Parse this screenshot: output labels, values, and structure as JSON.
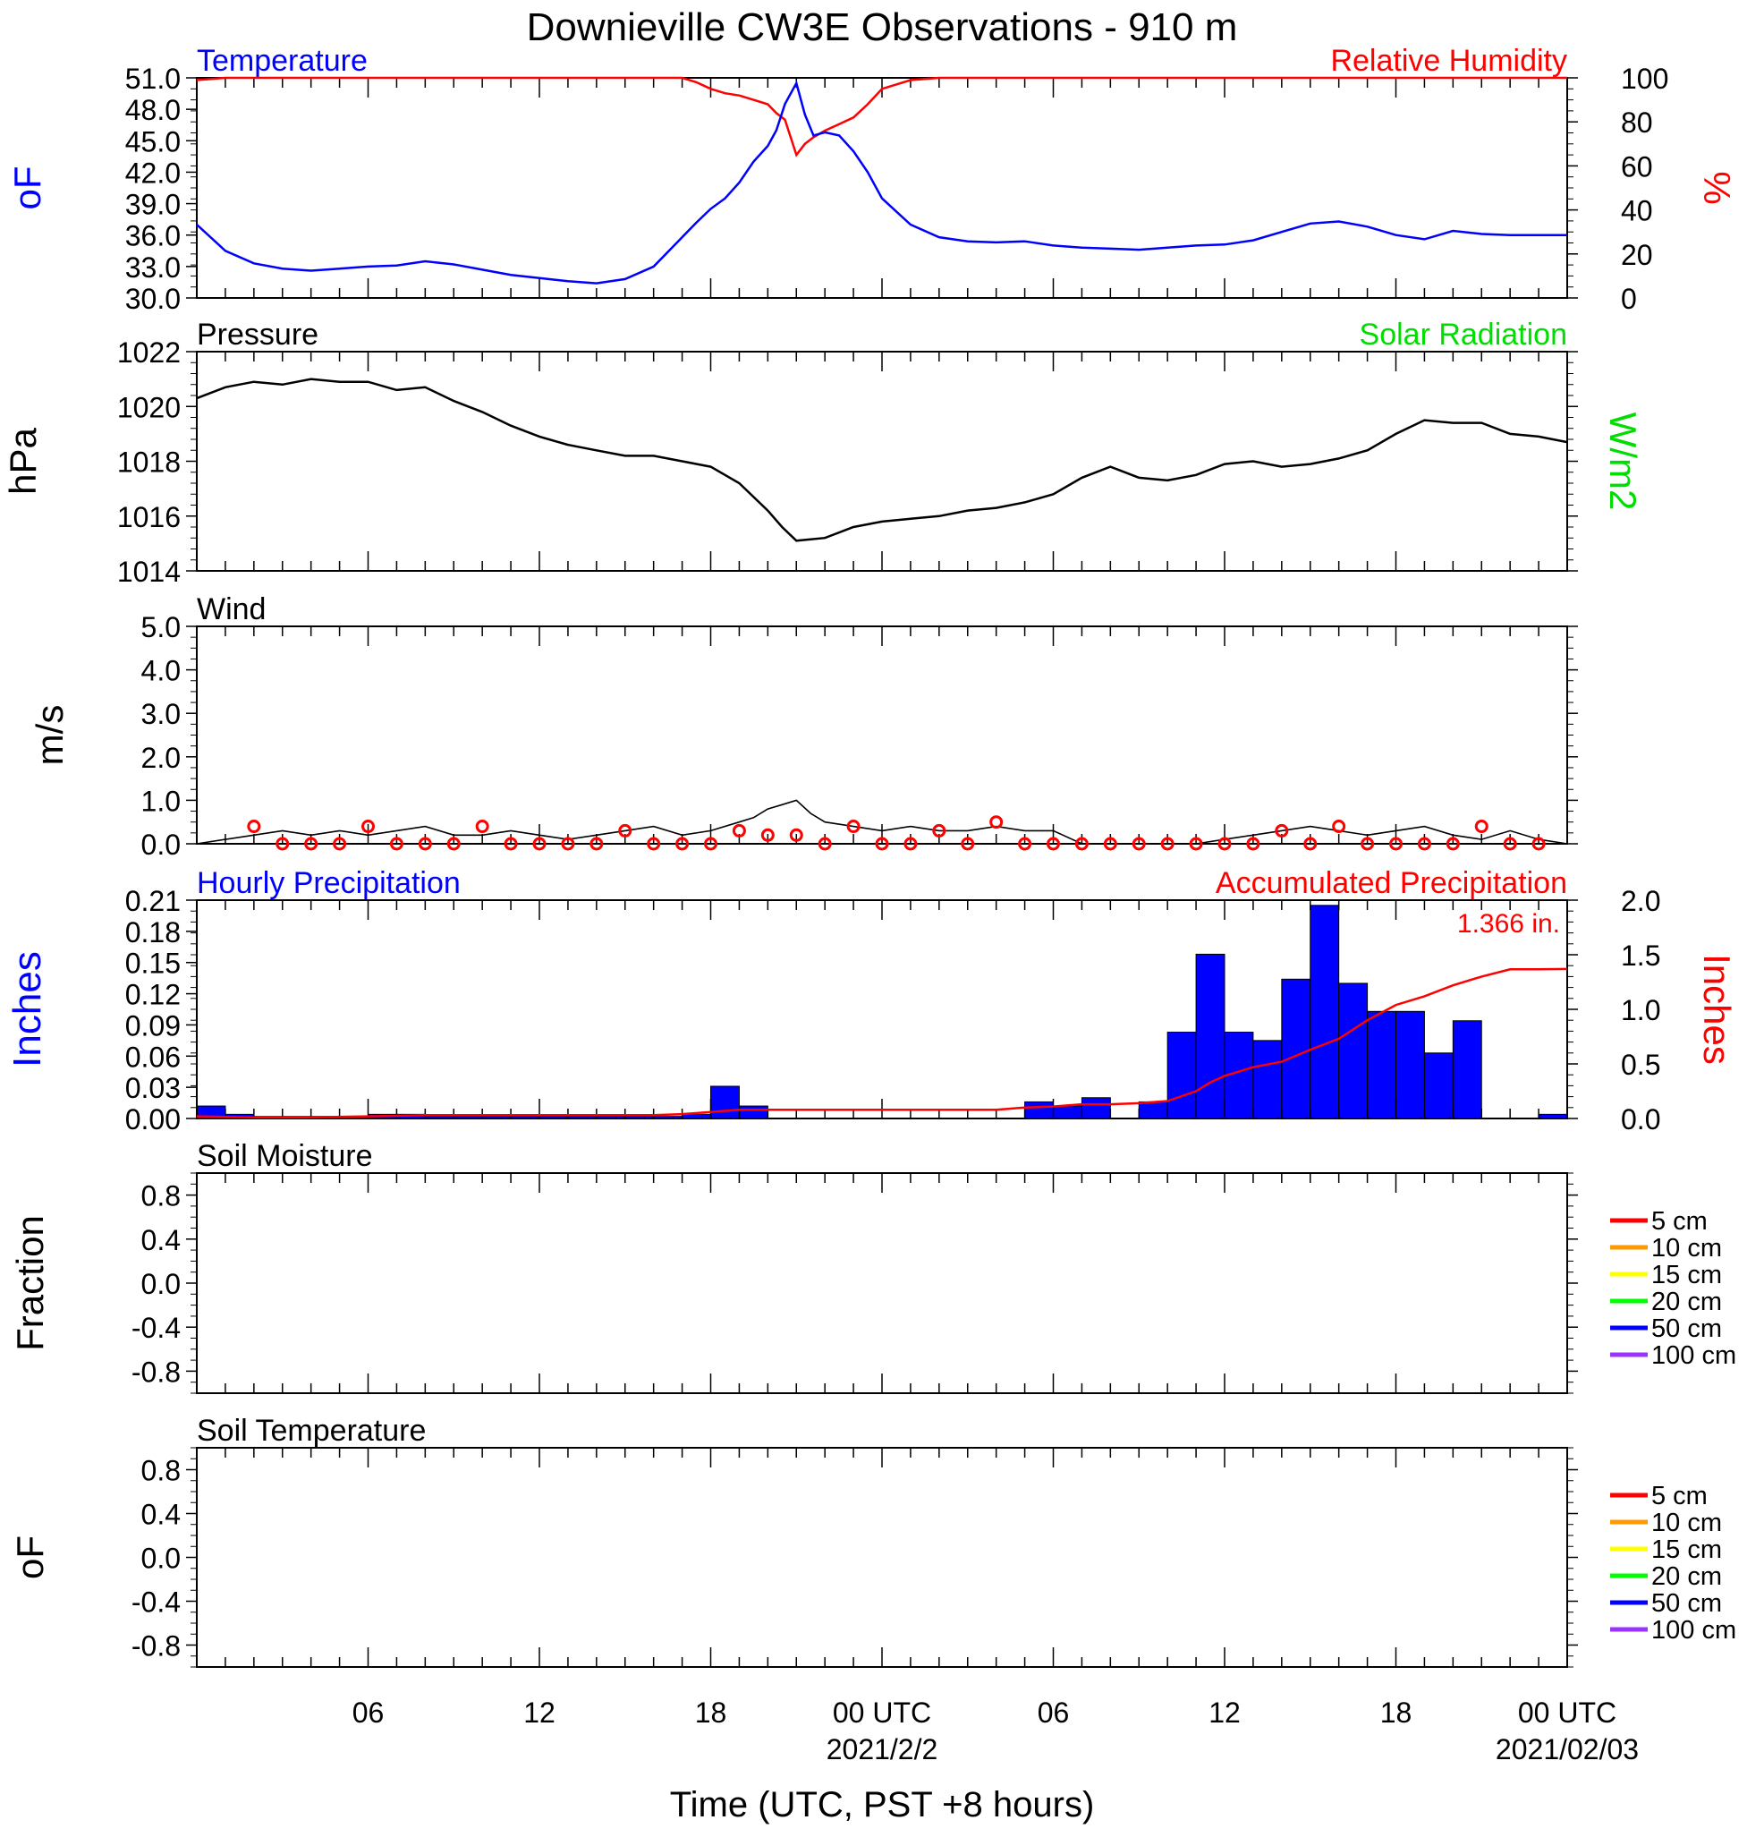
{
  "figure": {
    "title": "Downieville CW3E Observations - 910 m",
    "xlabel": "Time (UTC, PST +8 hours)",
    "xticks": [
      "06",
      "12",
      "18",
      "00 UTC",
      "06",
      "12",
      "18",
      "00 UTC"
    ],
    "date_labels": [
      "2021/2/2",
      "2021/02/03"
    ],
    "colors": {
      "temperature": "#0000ff",
      "humidity": "#ff0000",
      "pressure": "#000000",
      "solar": "#00dd00",
      "hourly": "#0000ff",
      "accum": "#ff0000",
      "wind": "#000000",
      "wind_marker": "#ff0000"
    }
  },
  "chart_data": [
    {
      "type": "line",
      "panel": "temperature-humidity",
      "title_left": "Temperature",
      "title_right": "Relative Humidity",
      "ylabel_left": "oF",
      "ylabel_right": "%",
      "ylim_left": [
        30,
        51
      ],
      "yticks_left": [
        "51.0",
        "48.0",
        "45.0",
        "42.0",
        "39.0",
        "36.0",
        "33.0",
        "30.0"
      ],
      "ylim_right": [
        0,
        100
      ],
      "yticks_right": [
        "100",
        "80",
        "60",
        "40",
        "20",
        "0"
      ],
      "x_hours": [
        0,
        1,
        2,
        3,
        4,
        5,
        6,
        7,
        8,
        9,
        10,
        11,
        12,
        13,
        14,
        15,
        16,
        17,
        17.5,
        18,
        18.5,
        19,
        19.5,
        20,
        20.3,
        20.6,
        21,
        21.3,
        21.6,
        22,
        22.5,
        23,
        23.5,
        24,
        25,
        26,
        27,
        28,
        29,
        30,
        31,
        32,
        33,
        34,
        35,
        36,
        37,
        38,
        39,
        40,
        41,
        42,
        43,
        44,
        45,
        46,
        47,
        48
      ],
      "series": [
        {
          "name": "Temperature",
          "axis": "left",
          "color": "#0000ff",
          "values": [
            37.0,
            34.5,
            33.3,
            32.8,
            32.6,
            32.8,
            33.0,
            33.1,
            33.5,
            33.2,
            32.7,
            32.2,
            31.9,
            31.6,
            31.4,
            31.8,
            33.0,
            35.8,
            37.2,
            38.5,
            39.5,
            41.0,
            43.0,
            44.5,
            46.0,
            48.5,
            50.5,
            47.5,
            45.5,
            45.8,
            45.5,
            44.0,
            42.0,
            39.5,
            37.0,
            35.8,
            35.4,
            35.3,
            35.4,
            35.0,
            34.8,
            34.7,
            34.6,
            34.8,
            35.0,
            35.1,
            35.5,
            36.3,
            37.1,
            37.3,
            36.8,
            36.0,
            35.6,
            36.4,
            36.1,
            36.0,
            36.0,
            36.0
          ]
        },
        {
          "name": "Relative Humidity",
          "axis": "right",
          "color": "#ff0000",
          "values": [
            99,
            100,
            100,
            100,
            100,
            100,
            100,
            100,
            100,
            100,
            100,
            100,
            100,
            100,
            100,
            100,
            100,
            100,
            98,
            95,
            93,
            92,
            90,
            88,
            84,
            81,
            65,
            70,
            73,
            76,
            79,
            82,
            88,
            95,
            99,
            100,
            100,
            100,
            100,
            100,
            100,
            100,
            100,
            100,
            100,
            100,
            100,
            100,
            100,
            100,
            100,
            100,
            100,
            100,
            100,
            100,
            100,
            100
          ]
        }
      ]
    },
    {
      "type": "line",
      "panel": "pressure-solar",
      "title_left": "Pressure",
      "title_right": "Solar Radiation",
      "ylabel_left": "hPa",
      "ylabel_right": "W/m2",
      "ylim": [
        1014,
        1022
      ],
      "yticks": [
        "1022",
        "1020",
        "1018",
        "1016",
        "1014"
      ],
      "x_hours": [
        0,
        1,
        2,
        3,
        4,
        5,
        6,
        7,
        8,
        9,
        10,
        11,
        12,
        13,
        14,
        15,
        16,
        17,
        18,
        19,
        20,
        20.5,
        21,
        22,
        23,
        24,
        25,
        26,
        27,
        28,
        29,
        30,
        31,
        32,
        33,
        34,
        35,
        36,
        37,
        38,
        39,
        40,
        41,
        42,
        43,
        44,
        45,
        46,
        47,
        48
      ],
      "series": [
        {
          "name": "Pressure",
          "color": "#000000",
          "values": [
            1020.3,
            1020.7,
            1020.9,
            1020.8,
            1021.0,
            1020.9,
            1020.9,
            1020.6,
            1020.7,
            1020.2,
            1019.8,
            1019.3,
            1018.9,
            1018.6,
            1018.4,
            1018.2,
            1018.2,
            1018.0,
            1017.8,
            1017.2,
            1016.2,
            1015.6,
            1015.1,
            1015.2,
            1015.6,
            1015.8,
            1015.9,
            1016.0,
            1016.2,
            1016.3,
            1016.5,
            1016.8,
            1017.4,
            1017.8,
            1017.4,
            1017.3,
            1017.5,
            1017.9,
            1018.0,
            1017.8,
            1017.9,
            1018.1,
            1018.4,
            1019.0,
            1019.5,
            1019.4,
            1019.4,
            1019.0,
            1018.9,
            1018.7
          ]
        }
      ]
    },
    {
      "type": "line",
      "panel": "wind",
      "title_left": "Wind",
      "ylabel_left": "m/s",
      "ylim": [
        0,
        5
      ],
      "yticks": [
        "5.0",
        "4.0",
        "3.0",
        "2.0",
        "1.0",
        "0.0"
      ],
      "x_hours": [
        0,
        1,
        2,
        3,
        4,
        5,
        6,
        7,
        8,
        9,
        10,
        11,
        12,
        13,
        14,
        15,
        16,
        17,
        18,
        19,
        19.5,
        20,
        20.5,
        21,
        21.5,
        22,
        23,
        24,
        25,
        26,
        27,
        28,
        29,
        30,
        31,
        32,
        33,
        34,
        35,
        36,
        37,
        38,
        39,
        40,
        41,
        42,
        43,
        44,
        45,
        46,
        47,
        48
      ],
      "series": [
        {
          "name": "Wind Speed",
          "color": "#000000",
          "values": [
            0.0,
            0.1,
            0.2,
            0.3,
            0.2,
            0.3,
            0.2,
            0.3,
            0.4,
            0.2,
            0.2,
            0.3,
            0.2,
            0.1,
            0.2,
            0.3,
            0.4,
            0.2,
            0.3,
            0.5,
            0.6,
            0.8,
            0.9,
            1.0,
            0.7,
            0.5,
            0.4,
            0.3,
            0.4,
            0.3,
            0.3,
            0.4,
            0.3,
            0.3,
            0.0,
            0.0,
            0.0,
            0.0,
            0.0,
            0.1,
            0.2,
            0.3,
            0.4,
            0.3,
            0.2,
            0.3,
            0.4,
            0.2,
            0.1,
            0.3,
            0.1,
            0.0
          ]
        }
      ],
      "markers_hours": [
        2,
        3,
        4,
        5,
        6,
        7,
        8,
        9,
        10,
        11,
        12,
        13,
        14,
        15,
        16,
        17,
        18,
        19,
        20,
        21,
        22,
        23,
        24,
        25,
        26,
        27,
        28,
        29,
        30,
        31,
        32,
        33,
        34,
        35,
        36,
        37,
        38,
        39,
        40,
        41,
        42,
        43,
        44,
        45,
        46,
        47
      ],
      "markers_values": [
        0.4,
        0.0,
        0.0,
        0.0,
        0.4,
        0.0,
        0.0,
        0.0,
        0.4,
        0.0,
        0.0,
        0.0,
        0.0,
        0.3,
        0.0,
        0.0,
        0.0,
        0.3,
        0.2,
        0.2,
        0.0,
        0.4,
        0.0,
        0.0,
        0.3,
        0.0,
        0.5,
        0.0,
        0.0,
        0.0,
        0.0,
        0.0,
        0.0,
        0.0,
        0.0,
        0.0,
        0.3,
        0.0,
        0.4,
        0.0,
        0.0,
        0.0,
        0.0,
        0.4,
        0.0,
        0.0
      ]
    },
    {
      "type": "bar",
      "panel": "precipitation",
      "title_left": "Hourly Precipitation",
      "title_right": "Accumulated Precipitation",
      "ylabel_left": "Inches",
      "ylabel_right": "Inches",
      "ylim_left": [
        0,
        0.21
      ],
      "yticks_left": [
        "0.21",
        "0.18",
        "0.15",
        "0.12",
        "0.09",
        "0.06",
        "0.03",
        "0.00"
      ],
      "ylim_right": [
        0,
        2.0
      ],
      "yticks_right": [
        "2.0",
        "1.5",
        "1.0",
        "0.5",
        "0.0"
      ],
      "total_label": "1.366 in.",
      "hour_index": [
        0,
        1,
        2,
        3,
        4,
        5,
        6,
        7,
        8,
        9,
        10,
        11,
        12,
        13,
        14,
        15,
        16,
        17,
        18,
        19,
        20,
        21,
        22,
        23,
        24,
        25,
        26,
        27,
        28,
        29,
        30,
        31,
        32,
        33,
        34,
        35,
        36,
        37,
        38,
        39,
        40,
        41,
        42,
        43,
        44,
        45,
        46,
        47
      ],
      "hourly_values": [
        0.012,
        0.004,
        0.002,
        0.002,
        0.002,
        0.002,
        0.004,
        0.004,
        0.002,
        0.002,
        0.002,
        0.002,
        0.002,
        0.002,
        0.002,
        0.002,
        0.002,
        0.004,
        0.031,
        0.012,
        0.0,
        0.0,
        0.0,
        0.0,
        0.0,
        0.0,
        0.0,
        0.0,
        0.0,
        0.016,
        0.012,
        0.02,
        0.0,
        0.016,
        0.083,
        0.158,
        0.083,
        0.075,
        0.134,
        0.205,
        0.13,
        0.103,
        0.103,
        0.063,
        0.094,
        0.0,
        0.0,
        0.004
      ],
      "accum_x_hours": [
        0,
        2,
        4,
        6,
        8,
        10,
        12,
        14,
        16,
        17,
        18,
        19,
        20,
        22,
        24,
        26,
        28,
        29,
        30,
        31,
        32,
        33,
        34,
        35,
        35.5,
        36,
        37,
        38,
        39,
        40,
        41,
        42,
        43,
        44,
        45,
        46,
        47,
        48
      ],
      "accum_values": [
        0.02,
        0.01,
        0.01,
        0.02,
        0.03,
        0.03,
        0.03,
        0.03,
        0.03,
        0.04,
        0.06,
        0.08,
        0.08,
        0.08,
        0.08,
        0.08,
        0.08,
        0.1,
        0.11,
        0.13,
        0.13,
        0.14,
        0.16,
        0.25,
        0.33,
        0.39,
        0.47,
        0.52,
        0.63,
        0.73,
        0.9,
        1.04,
        1.12,
        1.22,
        1.3,
        1.366,
        1.366,
        1.37
      ]
    },
    {
      "type": "line",
      "panel": "soil-moisture",
      "title_left": "Soil Moisture",
      "ylabel_left": "Fraction",
      "ylim": [
        -1.0,
        1.0
      ],
      "yticks": [
        "0.8",
        "0.4",
        "0.0",
        "-0.4",
        "-0.8"
      ],
      "legend": [
        "5 cm",
        "10 cm",
        "15 cm",
        "20 cm",
        "50 cm",
        "100 cm"
      ],
      "legend_colors": [
        "#ff0000",
        "#ff9900",
        "#ffff00",
        "#00ff00",
        "#0000ff",
        "#9933ff"
      ],
      "series": []
    },
    {
      "type": "line",
      "panel": "soil-temperature",
      "title_left": "Soil Temperature",
      "ylabel_left": "oF",
      "ylim": [
        -1.0,
        1.0
      ],
      "yticks": [
        "0.8",
        "0.4",
        "0.0",
        "-0.4",
        "-0.8"
      ],
      "legend": [
        "5 cm",
        "10 cm",
        "15 cm",
        "20 cm",
        "50 cm",
        "100 cm"
      ],
      "legend_colors": [
        "#ff0000",
        "#ff9900",
        "#ffff00",
        "#00ff00",
        "#0000ff",
        "#9933ff"
      ],
      "series": []
    }
  ]
}
